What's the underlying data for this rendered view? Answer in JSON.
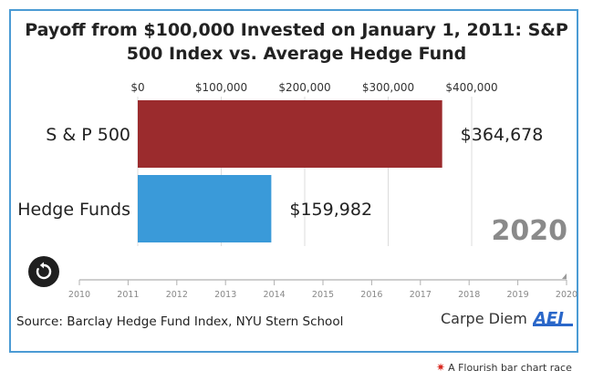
{
  "title_line1": "Payoff from $100,000 Invested on January 1, 2011: S&P",
  "title_line2": "500 Index vs. Average Hedge Fund",
  "source": "Source: Barclay Hedge Fund Index, NYU Stern School",
  "brand": "Carpe Diem",
  "brand_logo": "AEI",
  "footer": "A Flourish bar chart race",
  "year_label": "2020",
  "timeline": {
    "years": [
      "2010",
      "2011",
      "2012",
      "2013",
      "2014",
      "2015",
      "2016",
      "2017",
      "2018",
      "2019",
      "2020"
    ],
    "current": 2020
  },
  "colors": {
    "sp500": "#9b2b2d",
    "hedge": "#3a9ad9",
    "frame": "#4b9bd4",
    "year": "#8a8a8a"
  },
  "icons": {
    "replay": "replay-icon",
    "footer": "flourish-star-icon"
  },
  "chart_data": {
    "type": "bar",
    "orientation": "horizontal",
    "categories": [
      "S & P 500",
      "Hedge Funds"
    ],
    "values": [
      364678,
      159982
    ],
    "value_labels": [
      "$364,678",
      "$159,982"
    ],
    "xlim": [
      0,
      400000
    ],
    "xticks": [
      0,
      100000,
      200000,
      300000,
      400000
    ],
    "xtick_labels": [
      "$0",
      "$100,000",
      "$200,000",
      "$300,000",
      "$400,000"
    ],
    "grid": true
  }
}
